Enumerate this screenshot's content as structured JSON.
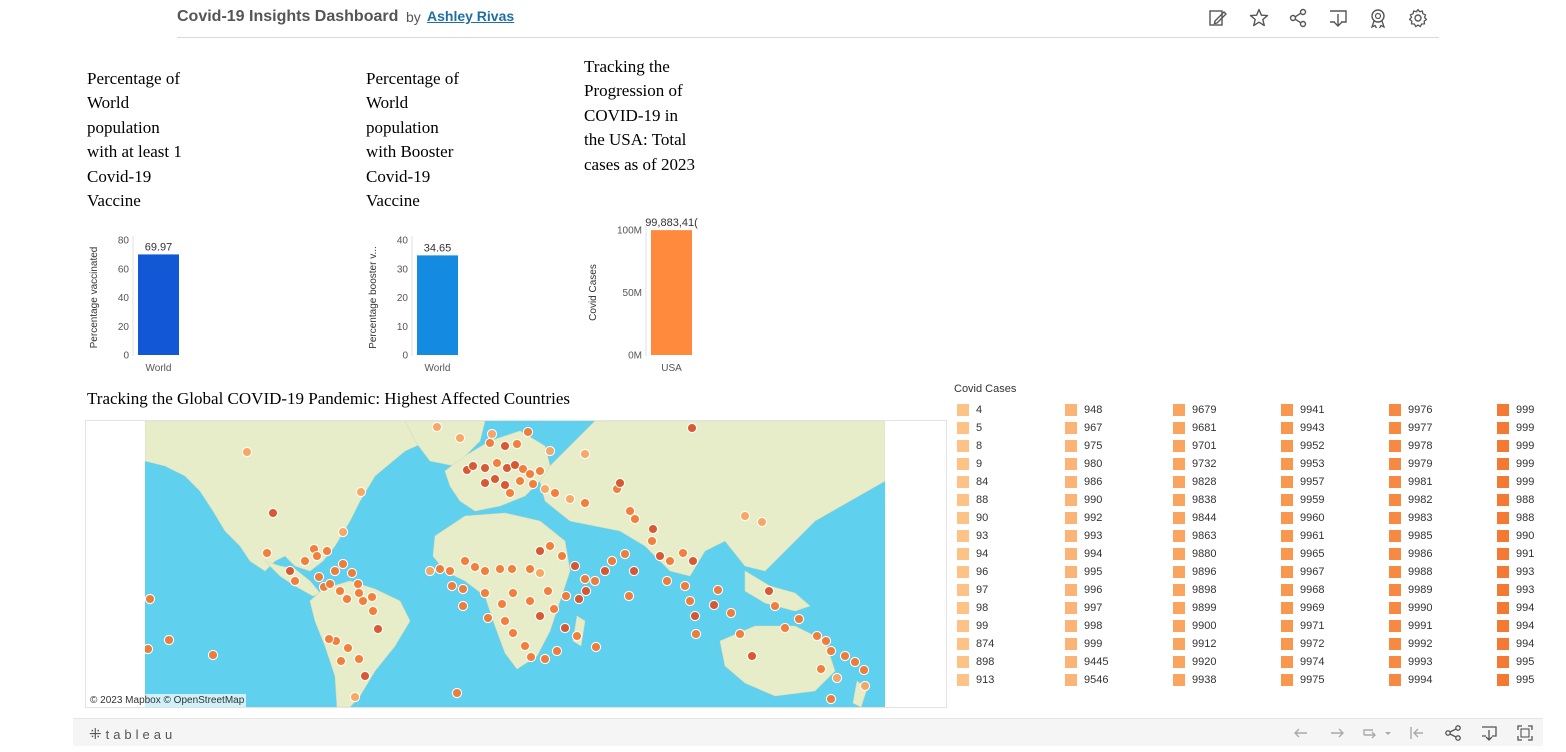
{
  "header": {
    "title": "Covid-19 Insights Dashboard",
    "by": "by",
    "author": "Ashley Rivas",
    "icons": [
      "edit-icon",
      "star-icon",
      "share-icon",
      "download-icon",
      "badge-icon",
      "settings-icon"
    ]
  },
  "chart_data": [
    {
      "type": "bar",
      "title": "Percentage of World population with at least 1 Covid-19 Vaccine",
      "categories": [
        "World"
      ],
      "values": [
        69.97
      ],
      "value_labels": [
        "69.97"
      ],
      "ylabel": "Percentage vaccinated",
      "ylim": [
        0,
        80
      ],
      "yticks": [
        0,
        20,
        40,
        60,
        80
      ],
      "ytick_labels": [
        "0",
        "20",
        "40",
        "60",
        "80"
      ],
      "color": "#1257d6"
    },
    {
      "type": "bar",
      "title": "Percentage of World population with Booster Covid-19 Vaccine",
      "categories": [
        "World"
      ],
      "values": [
        34.65
      ],
      "value_labels": [
        "34.65"
      ],
      "ylabel": "Percentage booster v...",
      "ylim": [
        0,
        40
      ],
      "yticks": [
        0,
        10,
        20,
        30,
        40
      ],
      "ytick_labels": [
        "0",
        "10",
        "20",
        "30",
        "40"
      ],
      "color": "#148be0"
    },
    {
      "type": "bar",
      "title": "Tracking the Progression of COVID-19 in the USA: Total cases as of 2023",
      "categories": [
        "USA"
      ],
      "values": [
        99883410
      ],
      "value_labels": [
        "99,883,41("
      ],
      "ylabel": "Covid Cases",
      "ylim": [
        0,
        100000000
      ],
      "yticks": [
        0,
        50000000,
        100000000
      ],
      "ytick_labels": [
        "0M",
        "50M",
        "100M"
      ],
      "color": "#ff8a3d"
    }
  ],
  "map": {
    "title": "Tracking the Global COVID-19 Pandemic: Highest Affected Countries",
    "credit": "© 2023 Mapbox  © OpenStreetMap",
    "ocean_color": "#5fd0ee",
    "land_color": "#e8edc9"
  },
  "legend": {
    "title": "Covid Cases",
    "columns": [
      {
        "color": "#fcc286",
        "items": [
          "4",
          "5",
          "8",
          "9",
          "84",
          "88",
          "90",
          "93",
          "94",
          "96",
          "97",
          "98",
          "99",
          "874",
          "898",
          "913"
        ]
      },
      {
        "color": "#fbb476",
        "items": [
          "948",
          "967",
          "975",
          "980",
          "986",
          "990",
          "992",
          "993",
          "994",
          "995",
          "996",
          "997",
          "998",
          "999",
          "9445",
          "9546"
        ]
      },
      {
        "color": "#f9a560",
        "items": [
          "9679",
          "9681",
          "9701",
          "9732",
          "9828",
          "9838",
          "9844",
          "9863",
          "9880",
          "9896",
          "9898",
          "9899",
          "9900",
          "9912",
          "9920",
          "9938"
        ]
      },
      {
        "color": "#f8984f",
        "items": [
          "9941",
          "9943",
          "9952",
          "9953",
          "9957",
          "9959",
          "9960",
          "9961",
          "9965",
          "9967",
          "9968",
          "9969",
          "9971",
          "9972",
          "9974",
          "9975"
        ]
      },
      {
        "color": "#f78a42",
        "items": [
          "9976",
          "9977",
          "9978",
          "9979",
          "9981",
          "9982",
          "9983",
          "9985",
          "9986",
          "9988",
          "9989",
          "9990",
          "9991",
          "9992",
          "9993",
          "9994"
        ]
      },
      {
        "color": "#f47a33",
        "items": [
          "999",
          "999",
          "999",
          "999",
          "999",
          "988",
          "988",
          "990",
          "991",
          "993",
          "993",
          "994",
          "994",
          "994",
          "995",
          "995"
        ]
      }
    ]
  },
  "footer": {
    "logo": "tableau",
    "icons": [
      "undo-icon",
      "redo-icon",
      "revert-icon",
      "first-page-icon",
      "share-icon",
      "download-icon",
      "fullscreen-icon"
    ]
  }
}
